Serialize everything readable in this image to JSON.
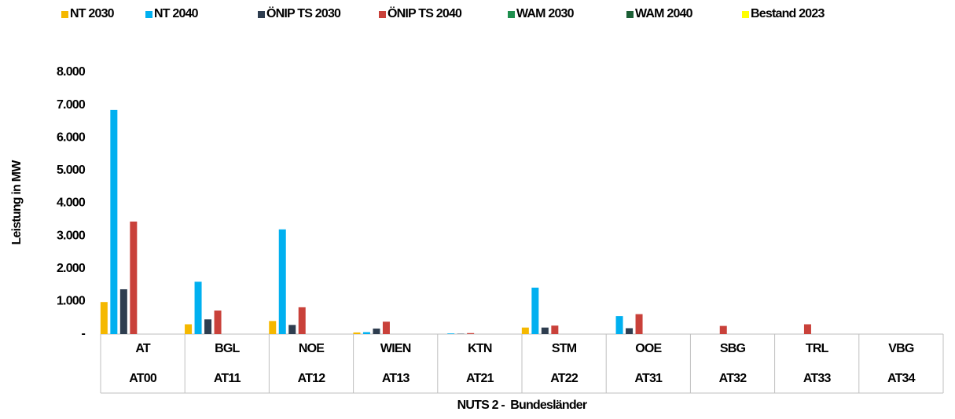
{
  "chart_data": {
    "type": "bar",
    "categories": [
      "AT",
      "BGL",
      "NOE",
      "WIEN",
      "KTN",
      "STM",
      "OOE",
      "SBG",
      "TRL",
      "VBG"
    ],
    "category_codes": [
      "AT00",
      "AT11",
      "AT12",
      "AT13",
      "AT21",
      "AT22",
      "AT31",
      "AT32",
      "AT33",
      "AT34"
    ],
    "series": [
      {
        "name": "NT 2030",
        "color": "#f5b800",
        "values": [
          980,
          300,
          400,
          50,
          0,
          200,
          0,
          0,
          0,
          0
        ]
      },
      {
        "name": "NT 2040",
        "color": "#00b0f0",
        "values": [
          6850,
          1600,
          3200,
          60,
          20,
          1420,
          550,
          0,
          0,
          0
        ]
      },
      {
        "name": "ÖNIP TS 2030",
        "color": "#2e3d4f",
        "values": [
          1370,
          450,
          280,
          170,
          10,
          200,
          180,
          0,
          0,
          0
        ]
      },
      {
        "name": "ÖNIP TS 2040",
        "color": "#c9413a",
        "values": [
          3440,
          720,
          820,
          380,
          30,
          260,
          610,
          250,
          300,
          0
        ]
      },
      {
        "name": "WAM 2030",
        "color": "#1e8f4e",
        "values": [
          0,
          0,
          0,
          0,
          0,
          0,
          0,
          0,
          0,
          0
        ]
      },
      {
        "name": "WAM 2040",
        "color": "#1b5e35",
        "values": [
          0,
          0,
          0,
          0,
          0,
          0,
          0,
          0,
          0,
          0
        ]
      },
      {
        "name": "Bestand 2023",
        "color": "#ffff00",
        "values": [
          0,
          0,
          0,
          0,
          0,
          0,
          0,
          0,
          0,
          0
        ]
      }
    ],
    "ylim": [
      0,
      8000
    ],
    "yticks": [
      {
        "value": 0,
        "label": "-"
      },
      {
        "value": 1000,
        "label": "1.000"
      },
      {
        "value": 2000,
        "label": "2.000"
      },
      {
        "value": 3000,
        "label": "3.000"
      },
      {
        "value": 4000,
        "label": "4.000"
      },
      {
        "value": 5000,
        "label": "5.000"
      },
      {
        "value": 6000,
        "label": "6.000"
      },
      {
        "value": 7000,
        "label": "7.000"
      },
      {
        "value": 8000,
        "label": "8.000"
      }
    ],
    "y_label": "Leistung in MW",
    "x_label": "NUTS 2 -  Bundesländer",
    "grid": false,
    "legend": "top"
  }
}
